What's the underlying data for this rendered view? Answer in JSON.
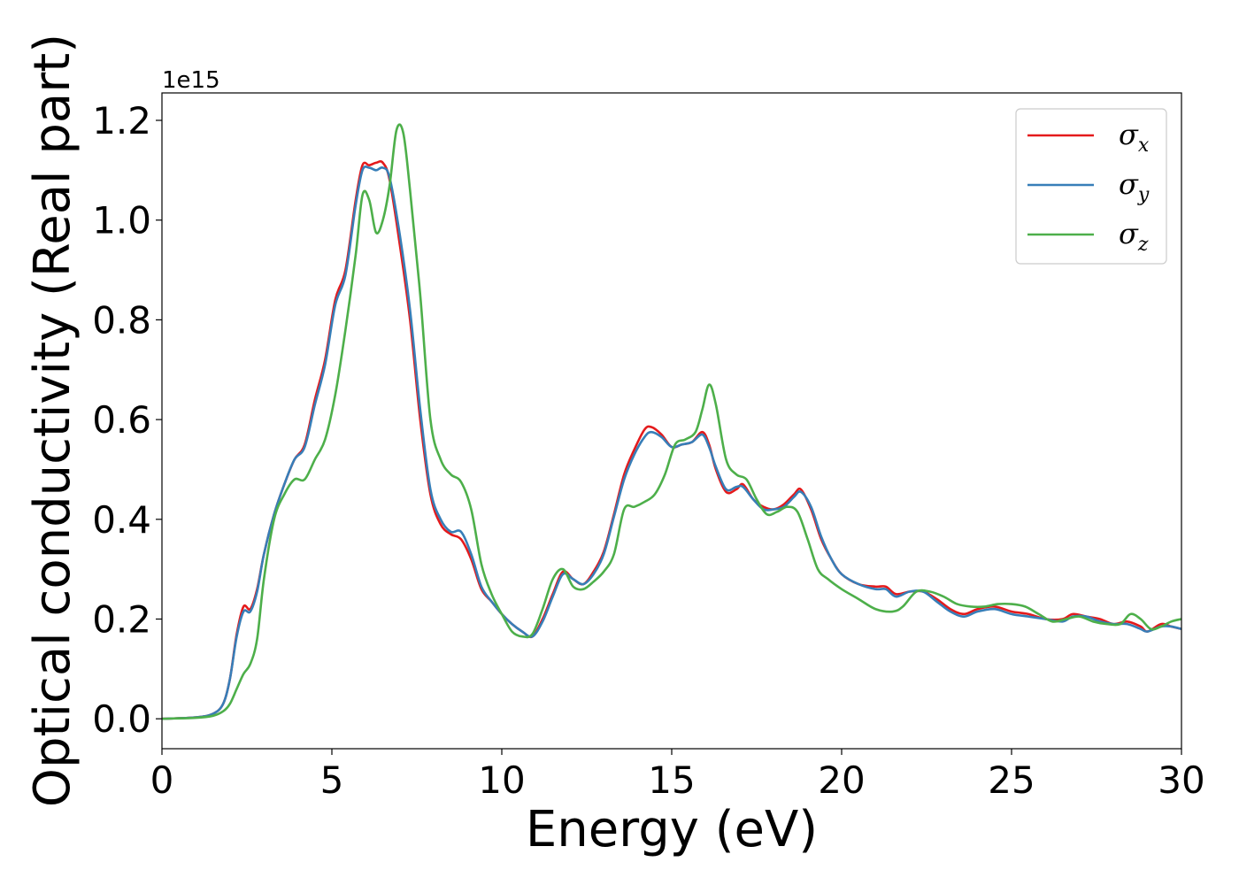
{
  "chart_data": {
    "type": "line",
    "xlabel": "Energy (eV)",
    "ylabel": "Optical conductivity (Real part)",
    "y_offset_label": "1e15",
    "xlim": [
      0,
      30
    ],
    "ylim": [
      -0.06,
      1.255
    ],
    "x_ticks": [
      0,
      5,
      10,
      15,
      20,
      25,
      30
    ],
    "x_tick_labels": [
      "0",
      "5",
      "10",
      "15",
      "20",
      "25",
      "30"
    ],
    "y_ticks": [
      0.0,
      0.2,
      0.4,
      0.6,
      0.8,
      1.0,
      1.2
    ],
    "y_tick_labels": [
      "0.0",
      "0.2",
      "0.4",
      "0.6",
      "0.8",
      "1.0",
      "1.2"
    ],
    "grid": false,
    "legend_position": "top-right",
    "series": [
      {
        "name": "x",
        "color": "#e41a1c",
        "x": [
          0,
          1,
          1.5,
          1.8,
          2.0,
          2.2,
          2.4,
          2.6,
          2.8,
          3.0,
          3.3,
          3.6,
          3.9,
          4.2,
          4.5,
          4.8,
          5.1,
          5.4,
          5.7,
          5.9,
          6.1,
          6.3,
          6.5,
          6.7,
          7.0,
          7.3,
          7.6,
          7.9,
          8.2,
          8.5,
          8.8,
          9.1,
          9.4,
          9.7,
          10.0,
          10.3,
          10.6,
          10.9,
          11.2,
          11.5,
          11.8,
          12.1,
          12.4,
          12.7,
          13.0,
          13.3,
          13.6,
          13.9,
          14.2,
          14.4,
          14.7,
          15.0,
          15.3,
          15.6,
          15.9,
          16.1,
          16.3,
          16.6,
          16.9,
          17.1,
          17.4,
          17.7,
          18.0,
          18.3,
          18.6,
          18.8,
          19.1,
          19.4,
          19.7,
          20.0,
          20.5,
          21.0,
          21.3,
          21.6,
          22.0,
          22.4,
          22.8,
          23.2,
          23.6,
          24.0,
          24.5,
          25.0,
          25.5,
          26.0,
          26.5,
          26.8,
          27.2,
          27.6,
          28.0,
          28.4,
          28.8,
          29.0,
          29.4,
          29.7,
          30.0
        ],
        "values": [
          0.0,
          0.003,
          0.01,
          0.03,
          0.08,
          0.17,
          0.225,
          0.22,
          0.26,
          0.33,
          0.41,
          0.47,
          0.52,
          0.55,
          0.64,
          0.72,
          0.84,
          0.9,
          1.04,
          1.11,
          1.11,
          1.115,
          1.115,
          1.08,
          0.95,
          0.8,
          0.6,
          0.45,
          0.39,
          0.37,
          0.36,
          0.32,
          0.26,
          0.235,
          0.21,
          0.19,
          0.175,
          0.165,
          0.2,
          0.25,
          0.295,
          0.28,
          0.27,
          0.295,
          0.335,
          0.41,
          0.49,
          0.54,
          0.58,
          0.585,
          0.57,
          0.545,
          0.55,
          0.555,
          0.575,
          0.55,
          0.5,
          0.455,
          0.46,
          0.47,
          0.44,
          0.425,
          0.42,
          0.43,
          0.45,
          0.46,
          0.42,
          0.36,
          0.32,
          0.29,
          0.27,
          0.265,
          0.265,
          0.25,
          0.255,
          0.255,
          0.24,
          0.22,
          0.21,
          0.22,
          0.225,
          0.215,
          0.21,
          0.2,
          0.2,
          0.21,
          0.205,
          0.2,
          0.19,
          0.195,
          0.185,
          0.175,
          0.19,
          0.185,
          0.18
        ]
      },
      {
        "name": "y",
        "color": "#377eb8",
        "x": [
          0,
          1,
          1.5,
          1.8,
          2.0,
          2.2,
          2.4,
          2.6,
          2.8,
          3.0,
          3.3,
          3.6,
          3.9,
          4.2,
          4.5,
          4.8,
          5.1,
          5.4,
          5.7,
          5.9,
          6.1,
          6.3,
          6.5,
          6.7,
          7.0,
          7.3,
          7.6,
          7.9,
          8.2,
          8.5,
          8.8,
          9.1,
          9.4,
          9.7,
          10.0,
          10.3,
          10.6,
          10.9,
          11.2,
          11.5,
          11.8,
          12.1,
          12.4,
          12.7,
          13.0,
          13.3,
          13.6,
          13.9,
          14.2,
          14.4,
          14.7,
          15.0,
          15.3,
          15.6,
          15.9,
          16.1,
          16.3,
          16.6,
          16.9,
          17.1,
          17.4,
          17.7,
          18.0,
          18.3,
          18.6,
          18.8,
          19.1,
          19.4,
          19.7,
          20.0,
          20.5,
          21.0,
          21.3,
          21.6,
          22.0,
          22.4,
          22.8,
          23.2,
          23.6,
          24.0,
          24.5,
          25.0,
          25.5,
          26.0,
          26.5,
          26.8,
          27.2,
          27.6,
          28.0,
          28.4,
          28.8,
          29.0,
          29.4,
          29.7,
          30.0
        ],
        "values": [
          0.0,
          0.003,
          0.01,
          0.03,
          0.08,
          0.165,
          0.215,
          0.215,
          0.255,
          0.33,
          0.41,
          0.47,
          0.52,
          0.545,
          0.63,
          0.71,
          0.83,
          0.89,
          1.03,
          1.1,
          1.105,
          1.1,
          1.105,
          1.085,
          0.97,
          0.82,
          0.62,
          0.46,
          0.4,
          0.375,
          0.375,
          0.33,
          0.265,
          0.235,
          0.21,
          0.19,
          0.175,
          0.165,
          0.195,
          0.245,
          0.29,
          0.28,
          0.27,
          0.29,
          0.33,
          0.405,
          0.48,
          0.53,
          0.565,
          0.575,
          0.565,
          0.545,
          0.55,
          0.555,
          0.57,
          0.545,
          0.505,
          0.46,
          0.465,
          0.465,
          0.44,
          0.42,
          0.42,
          0.425,
          0.445,
          0.455,
          0.425,
          0.365,
          0.32,
          0.29,
          0.27,
          0.26,
          0.26,
          0.245,
          0.255,
          0.255,
          0.235,
          0.215,
          0.205,
          0.215,
          0.22,
          0.21,
          0.205,
          0.2,
          0.195,
          0.205,
          0.205,
          0.195,
          0.19,
          0.19,
          0.18,
          0.175,
          0.185,
          0.185,
          0.18
        ]
      },
      {
        "name": "z",
        "color": "#4daf4a",
        "x": [
          0,
          1,
          1.5,
          1.8,
          2.0,
          2.2,
          2.4,
          2.6,
          2.8,
          3.0,
          3.3,
          3.6,
          3.9,
          4.2,
          4.5,
          4.8,
          5.1,
          5.4,
          5.7,
          5.9,
          6.1,
          6.3,
          6.5,
          6.7,
          6.9,
          7.1,
          7.3,
          7.6,
          7.9,
          8.2,
          8.5,
          8.8,
          9.1,
          9.4,
          9.7,
          10.0,
          10.3,
          10.6,
          10.9,
          11.2,
          11.5,
          11.8,
          12.1,
          12.4,
          12.7,
          13.0,
          13.3,
          13.6,
          13.9,
          14.2,
          14.5,
          14.8,
          15.1,
          15.4,
          15.7,
          15.9,
          16.1,
          16.3,
          16.6,
          16.9,
          17.2,
          17.5,
          17.8,
          18.1,
          18.4,
          18.7,
          19.0,
          19.3,
          19.6,
          20.0,
          20.5,
          21.0,
          21.5,
          21.8,
          22.2,
          22.6,
          23.0,
          23.4,
          23.8,
          24.2,
          24.6,
          25.0,
          25.4,
          25.8,
          26.2,
          26.6,
          27.0,
          27.4,
          27.8,
          28.2,
          28.5,
          28.8,
          29.1,
          29.4,
          29.7,
          30.0
        ],
        "values": [
          0.0,
          0.002,
          0.006,
          0.015,
          0.03,
          0.06,
          0.09,
          0.11,
          0.16,
          0.28,
          0.4,
          0.45,
          0.48,
          0.48,
          0.52,
          0.56,
          0.65,
          0.78,
          0.93,
          1.05,
          1.04,
          0.975,
          1.0,
          1.07,
          1.18,
          1.175,
          1.06,
          0.85,
          0.6,
          0.52,
          0.49,
          0.475,
          0.42,
          0.31,
          0.25,
          0.21,
          0.175,
          0.165,
          0.17,
          0.22,
          0.28,
          0.3,
          0.265,
          0.26,
          0.275,
          0.295,
          0.33,
          0.42,
          0.425,
          0.435,
          0.45,
          0.49,
          0.55,
          0.56,
          0.575,
          0.62,
          0.67,
          0.63,
          0.52,
          0.49,
          0.48,
          0.44,
          0.41,
          0.415,
          0.425,
          0.415,
          0.36,
          0.3,
          0.28,
          0.26,
          0.24,
          0.22,
          0.215,
          0.225,
          0.255,
          0.255,
          0.245,
          0.23,
          0.225,
          0.225,
          0.23,
          0.23,
          0.225,
          0.21,
          0.195,
          0.2,
          0.205,
          0.195,
          0.19,
          0.19,
          0.21,
          0.2,
          0.18,
          0.185,
          0.195,
          0.2
        ]
      }
    ]
  }
}
